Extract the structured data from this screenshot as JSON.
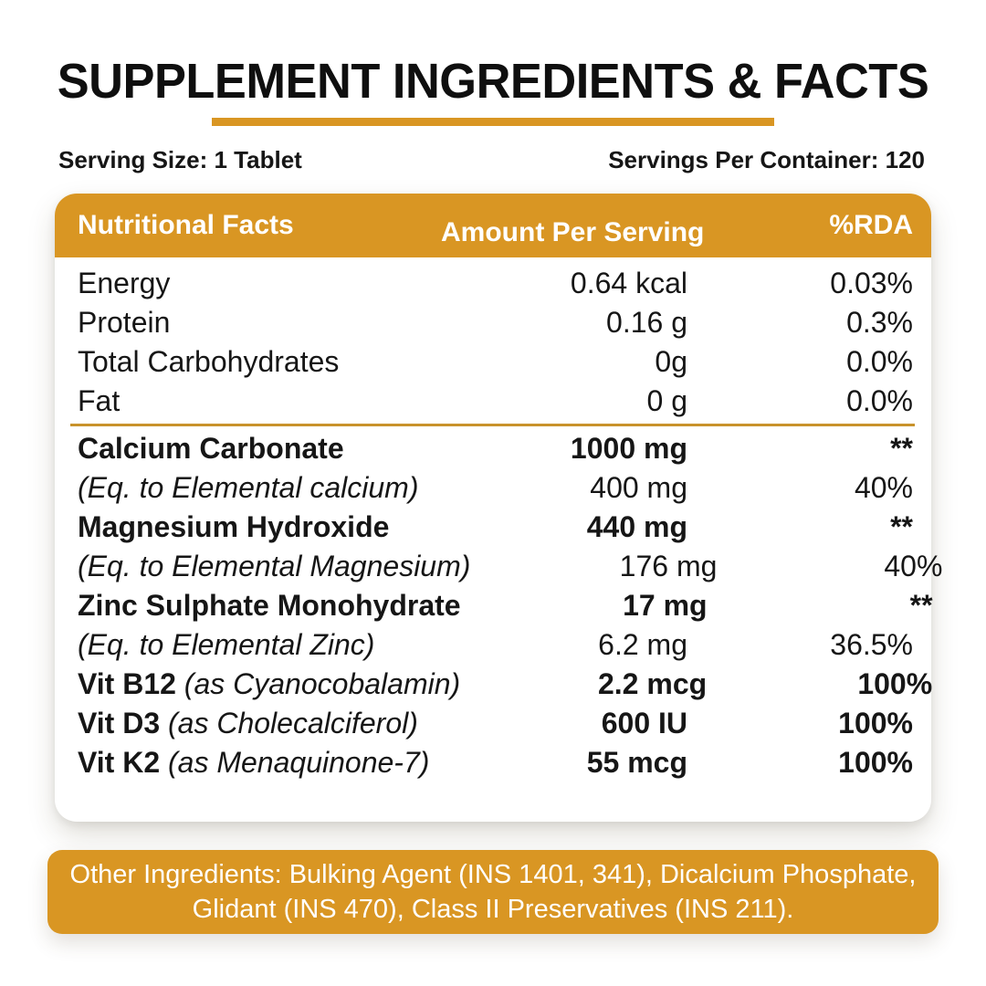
{
  "header": {
    "title": "SUPPLEMENT INGREDIENTS & FACTS",
    "serving_size": "Serving Size: 1 Tablet",
    "servings_per_container": "Servings Per Container: 120"
  },
  "colors": {
    "accent": "#D99623",
    "divider": "#C8922B",
    "text": "#161616",
    "on_accent": "#FFFFFF"
  },
  "table": {
    "headers": {
      "nutritional_facts": "Nutritional Facts",
      "amount_per_serving": "Amount Per Serving",
      "rda": "%RDA"
    },
    "rows": [
      {
        "style": "plain",
        "name": "Energy",
        "amount": "0.64 kcal",
        "rda": "0.03%"
      },
      {
        "style": "plain",
        "name": "Protein",
        "amount": "0.16 g",
        "rda": "0.3%"
      },
      {
        "style": "plain",
        "name": "Total Carbohydrates",
        "amount": "0g",
        "rda": "0.0%"
      },
      {
        "style": "plain",
        "name": "Fat",
        "amount": "0 g",
        "rda": "0.0%",
        "divider_after": true
      },
      {
        "style": "bold",
        "name": "Calcium Carbonate",
        "amount": "1000 mg",
        "rda": "**"
      },
      {
        "style": "eq",
        "name": "(Eq. to Elemental calcium)",
        "amount": "400 mg",
        "rda": "40%"
      },
      {
        "style": "bold",
        "name": "Magnesium Hydroxide",
        "amount": "440 mg",
        "rda": "**"
      },
      {
        "style": "eq",
        "name": "(Eq. to Elemental Magnesium)",
        "amount": "176 mg",
        "rda": "40%"
      },
      {
        "style": "bold",
        "name": "Zinc Sulphate Monohydrate",
        "amount": "17 mg",
        "rda": "**"
      },
      {
        "style": "eq",
        "name": "(Eq. to Elemental Zinc)",
        "amount": "6.2 mg",
        "rda": "36.5%"
      },
      {
        "style": "vit",
        "name": "Vit B12",
        "note": "(as Cyanocobalamin)",
        "amount": "2.2 mcg",
        "rda": "100%"
      },
      {
        "style": "vit",
        "name": "Vit D3",
        "note": "(as Cholecalciferol)",
        "amount": "600 IU",
        "rda": "100%"
      },
      {
        "style": "vit",
        "name": "Vit K2",
        "note": "(as Menaquinone-7)",
        "amount": "55 mcg",
        "rda": "100%"
      }
    ]
  },
  "other_ingredients": "Other Ingredients: Bulking Agent (INS 1401, 341), Dicalcium Phosphate, Glidant (INS 470), Class II Preservatives (INS 211)."
}
